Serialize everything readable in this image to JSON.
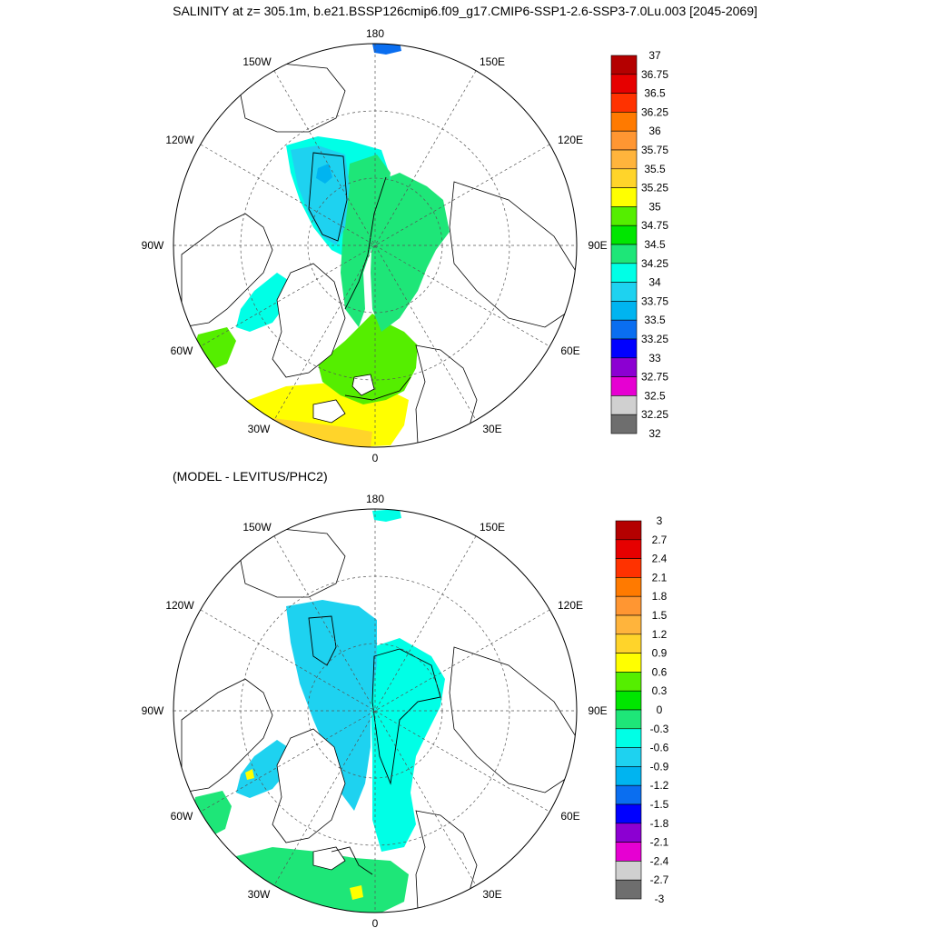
{
  "title": "SALINITY at z= 305.1m, b.e21.BSSP126cmip6.f09_g17.CMIP6-SSP1-2.6-SSP3-7.0Lu.003 [2045-2069]",
  "subtitle": "(MODEL - LEVITUS/PHC2)",
  "longitude_labels": [
    "180",
    "150E",
    "120E",
    "90E",
    "60E",
    "30E",
    "0",
    "30W",
    "60W",
    "90W",
    "120W",
    "150W"
  ],
  "colors": {
    "scale": [
      "#6e6e6e",
      "#d0d0d0",
      "#e600d2",
      "#8c00d2",
      "#0000ff",
      "#0a6ef0",
      "#00b4f0",
      "#1ed2f0",
      "#00ffe6",
      "#1ee678",
      "#00e600",
      "#55ee00",
      "#ffff00",
      "#ffd42a",
      "#ffb43c",
      "#ff9632",
      "#ff7a00",
      "#ff3200",
      "#e60000",
      "#b40000"
    ],
    "land": "#ffffff",
    "coast": "#000000"
  },
  "top_panel": {
    "colorbar_labels": [
      "37",
      "36.75",
      "36.5",
      "36.25",
      "36",
      "35.75",
      "35.5",
      "35.25",
      "35",
      "34.75",
      "34.5",
      "34.25",
      "34",
      "33.75",
      "33.5",
      "33.25",
      "33",
      "32.75",
      "32.5",
      "32.25",
      "32"
    ]
  },
  "bottom_panel": {
    "colorbar_labels": [
      "3",
      "2.7",
      "2.4",
      "2.1",
      "1.8",
      "1.5",
      "1.2",
      "0.9",
      "0.6",
      "0.3",
      "0",
      "-0.3",
      "-0.6",
      "-0.9",
      "-1.2",
      "-1.5",
      "-1.8",
      "-2.1",
      "-2.4",
      "-2.7",
      "-3"
    ]
  }
}
